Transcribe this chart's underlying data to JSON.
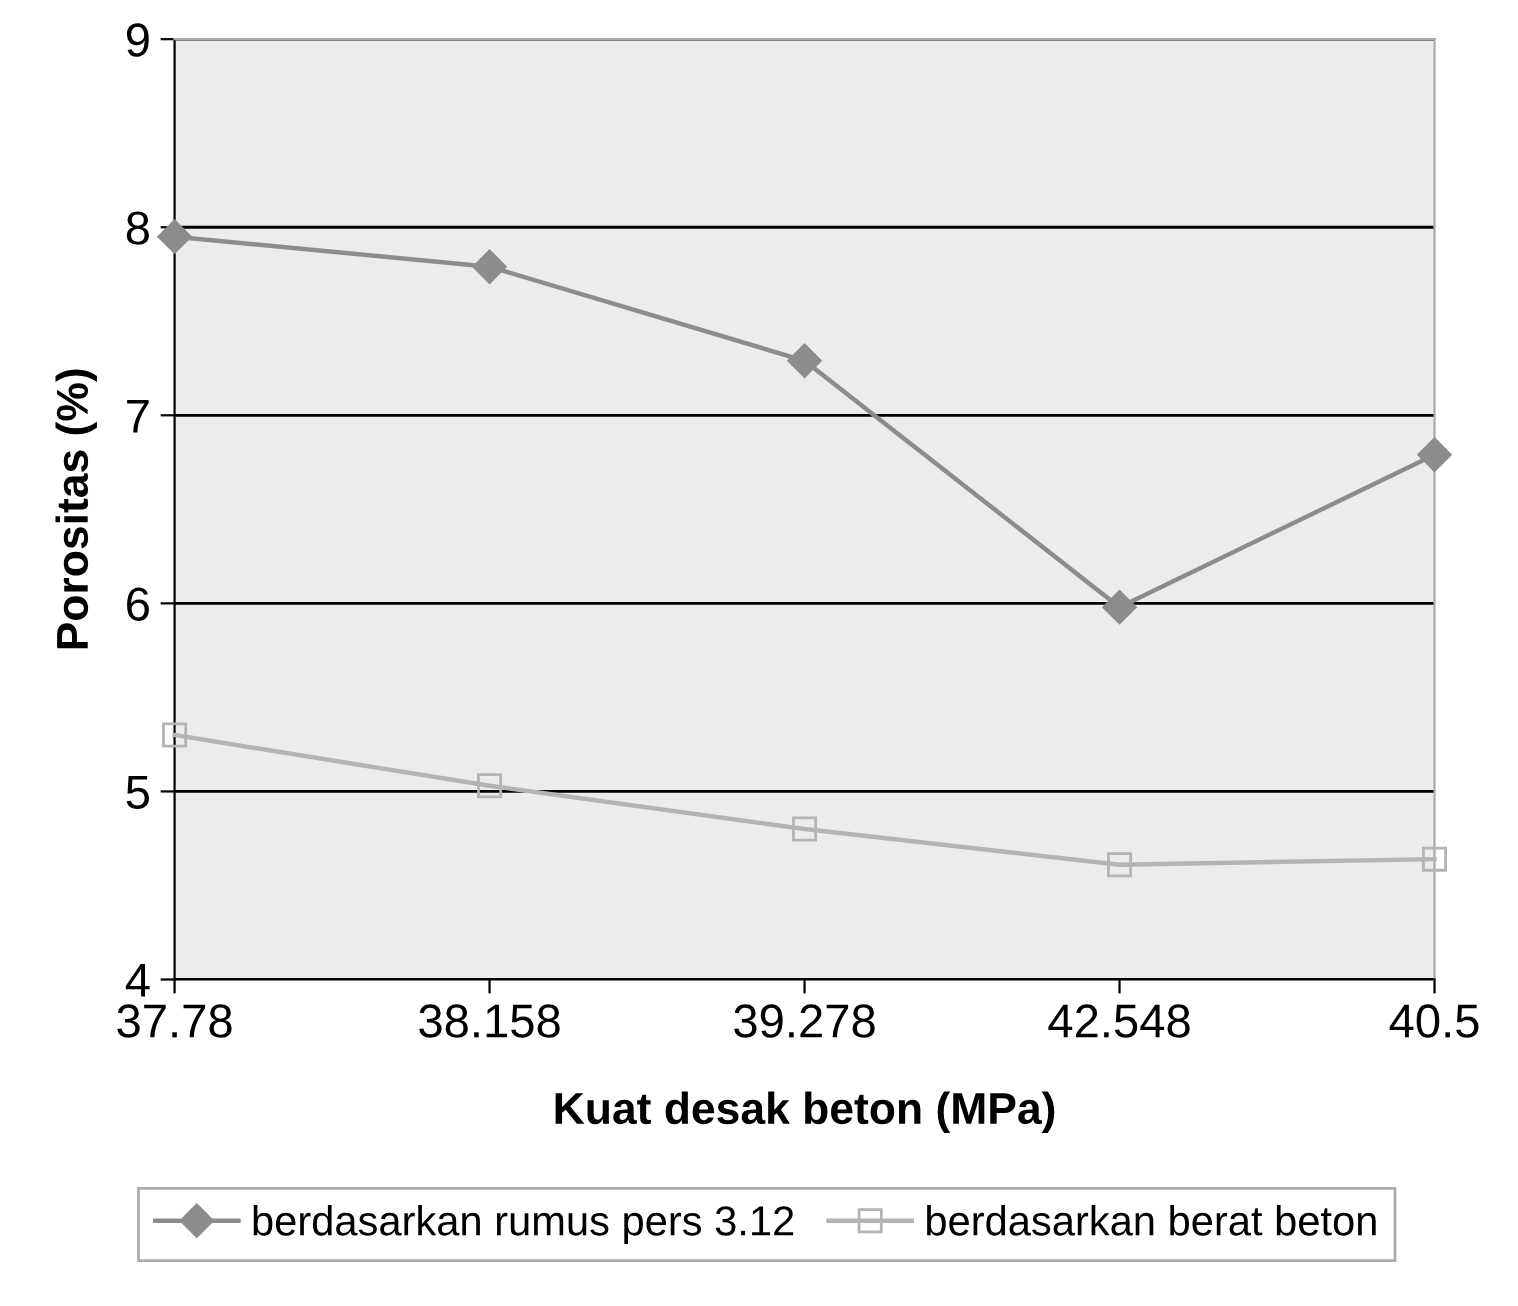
{
  "chart_data": {
    "type": "line",
    "xlabel": "Kuat desak beton (MPa)",
    "ylabel": "Porositas (%)",
    "categories": [
      "37.78",
      "38.158",
      "39.278",
      "42.548",
      "40.5"
    ],
    "series": [
      {
        "name": "berdasarkan rumus pers 3.12",
        "color": "#8c8c8c",
        "marker": "diamond",
        "values": [
          7.95,
          7.79,
          7.29,
          5.98,
          6.79
        ]
      },
      {
        "name": "berdasarkan berat beton",
        "color": "#b4b4b4",
        "marker": "square",
        "values": [
          5.3,
          5.03,
          4.8,
          4.61,
          4.64
        ]
      }
    ],
    "ylim": [
      4,
      9
    ],
    "yticks": [
      4,
      5,
      6,
      7,
      8,
      9
    ],
    "grid": "y",
    "legend": "bottom",
    "line_style": "solid"
  }
}
